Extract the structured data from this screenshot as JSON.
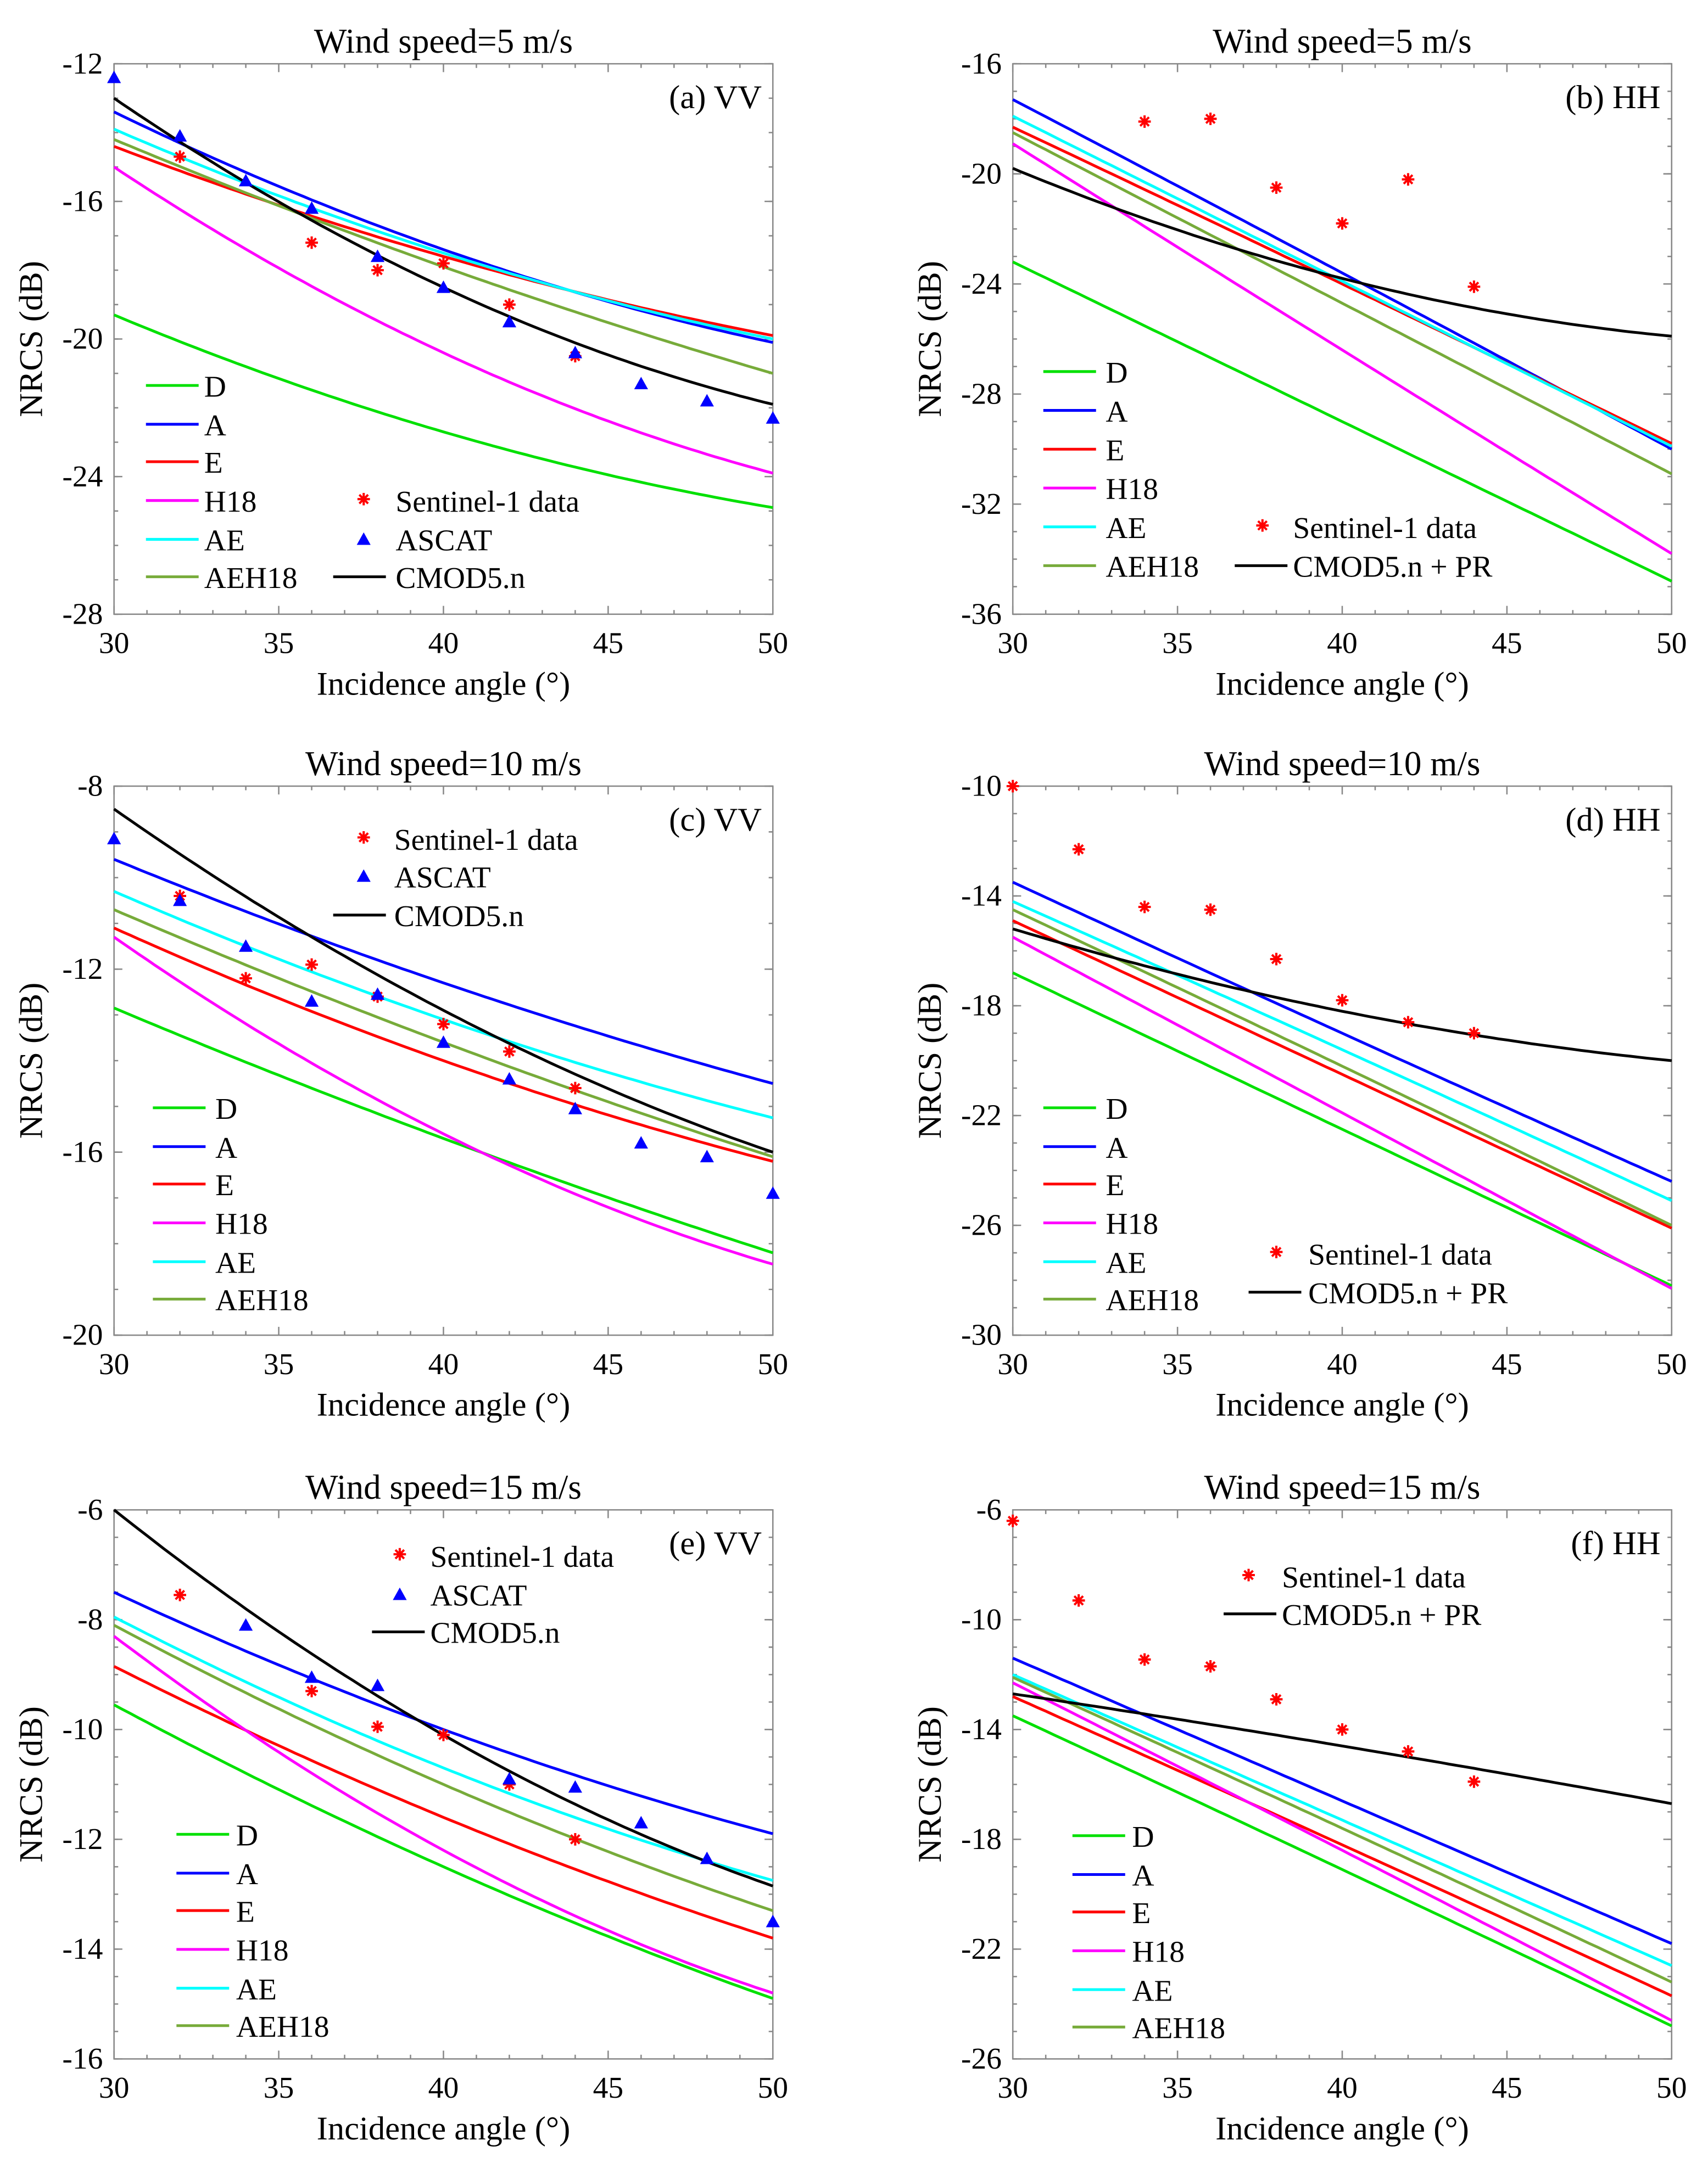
{
  "chart_data": [
    {
      "type": "line",
      "id": "a",
      "title": "Wind speed=5 m/s",
      "panel_label": "(a) VV",
      "xlabel": "Incidence angle (°)",
      "ylabel": "NRCS (dB)",
      "xlim": [
        30,
        50
      ],
      "ylim": [
        -28,
        -12
      ],
      "xticks": [
        30,
        35,
        40,
        45,
        50
      ],
      "yticks": [
        -12,
        -16,
        -20,
        -24,
        -28
      ],
      "legend_placement": "bottom-left",
      "series": [
        {
          "name": "D",
          "color": "#00e000",
          "x": [
            30,
            40,
            50
          ],
          "y": [
            -19.3,
            -22.7,
            -24.9
          ]
        },
        {
          "name": "A",
          "color": "#0000ff",
          "x": [
            30,
            40,
            50
          ],
          "y": [
            -13.4,
            -17.4,
            -20.1
          ]
        },
        {
          "name": "E",
          "color": "#ff0000",
          "x": [
            30,
            40,
            50
          ],
          "y": [
            -14.4,
            -17.6,
            -19.9
          ]
        },
        {
          "name": "H18",
          "color": "#ff00ff",
          "x": [
            30,
            40,
            50
          ],
          "y": [
            -15.0,
            -20.4,
            -23.9
          ]
        },
        {
          "name": "AE",
          "color": "#00ffff",
          "x": [
            30,
            40,
            50
          ],
          "y": [
            -13.9,
            -17.5,
            -20.0
          ]
        },
        {
          "name": "AEH18",
          "color": "#77ab3a",
          "x": [
            30,
            40,
            50
          ],
          "y": [
            -14.2,
            -17.9,
            -21.0
          ]
        },
        {
          "name": "CMOD5.n",
          "color": "#000000",
          "x": [
            30,
            40,
            50
          ],
          "y": [
            -13.0,
            -18.5,
            -21.9
          ]
        }
      ],
      "points": [
        {
          "name": "Sentinel-1 data",
          "marker": "star",
          "color": "#ff0000",
          "x": [
            32,
            36,
            38,
            40,
            42,
            44
          ],
          "y": [
            -14.7,
            -17.2,
            -18.0,
            -17.8,
            -19.0,
            -20.5
          ]
        },
        {
          "name": "ASCAT",
          "marker": "triangle",
          "color": "#0000ff",
          "x": [
            30,
            32,
            34,
            36,
            38,
            40,
            42,
            44,
            46,
            48,
            50
          ],
          "y": [
            -12.4,
            -14.1,
            -15.4,
            -16.2,
            -17.6,
            -18.5,
            -19.5,
            -20.4,
            -21.3,
            -21.8,
            -22.3
          ]
        }
      ]
    },
    {
      "type": "line",
      "id": "b",
      "title": "Wind speed=5 m/s",
      "panel_label": "(b) HH",
      "xlabel": "Incidence angle (°)",
      "ylabel": "NRCS (dB)",
      "xlim": [
        30,
        50
      ],
      "ylim": [
        -36,
        -16
      ],
      "xticks": [
        30,
        35,
        40,
        45,
        50
      ],
      "yticks": [
        -16,
        -20,
        -24,
        -28,
        -32,
        -36
      ],
      "legend_placement": "bottom-left",
      "series": [
        {
          "name": "D",
          "color": "#00e000",
          "x": [
            30,
            40,
            50
          ],
          "y": [
            -23.2,
            -29.0,
            -34.8
          ]
        },
        {
          "name": "A",
          "color": "#0000ff",
          "x": [
            30,
            40,
            50
          ],
          "y": [
            -17.3,
            -23.6,
            -30.0
          ]
        },
        {
          "name": "E",
          "color": "#ff0000",
          "x": [
            30,
            40,
            50
          ],
          "y": [
            -18.3,
            -24.0,
            -29.8
          ]
        },
        {
          "name": "H18",
          "color": "#ff00ff",
          "x": [
            30,
            40,
            50
          ],
          "y": [
            -18.9,
            -26.4,
            -33.8
          ]
        },
        {
          "name": "AE",
          "color": "#00ffff",
          "x": [
            30,
            40,
            50
          ],
          "y": [
            -17.9,
            -23.9,
            -29.9
          ]
        },
        {
          "name": "AEH18",
          "color": "#77ab3a",
          "x": [
            30,
            40,
            50
          ],
          "y": [
            -18.5,
            -24.7,
            -30.9
          ]
        },
        {
          "name": "CMOD5.n + PR",
          "color": "#000000",
          "x": [
            30,
            40,
            50
          ],
          "y": [
            -19.8,
            -23.8,
            -25.9
          ]
        }
      ],
      "points": [
        {
          "name": "Sentinel-1 data",
          "marker": "star",
          "color": "#ff0000",
          "x": [
            34,
            36,
            38,
            40,
            42,
            44
          ],
          "y": [
            -18.1,
            -18.0,
            -20.5,
            -21.8,
            -20.2,
            -24.1
          ]
        }
      ]
    },
    {
      "type": "line",
      "id": "c",
      "title": "Wind speed=10 m/s",
      "panel_label": "(c) VV",
      "xlabel": "Incidence angle (°)",
      "ylabel": "NRCS (dB)",
      "xlim": [
        30,
        50
      ],
      "ylim": [
        -20,
        -8
      ],
      "xticks": [
        30,
        35,
        40,
        45,
        50
      ],
      "yticks": [
        -8,
        -12,
        -16,
        -20
      ],
      "legend_placement": "bottom-left",
      "series": [
        {
          "name": "D",
          "color": "#00e000",
          "x": [
            30,
            40,
            50
          ],
          "y": [
            -12.85,
            -15.7,
            -18.2
          ]
        },
        {
          "name": "A",
          "color": "#0000ff",
          "x": [
            30,
            40,
            50
          ],
          "y": [
            -9.6,
            -12.3,
            -14.5
          ]
        },
        {
          "name": "E",
          "color": "#ff0000",
          "x": [
            30,
            40,
            50
          ],
          "y": [
            -11.1,
            -14.0,
            -16.2
          ]
        },
        {
          "name": "H18",
          "color": "#ff00ff",
          "x": [
            30,
            40,
            50
          ],
          "y": [
            -11.3,
            -15.6,
            -18.45
          ]
        },
        {
          "name": "AE",
          "color": "#00ffff",
          "x": [
            30,
            40,
            50
          ],
          "y": [
            -10.3,
            -13.1,
            -15.25
          ]
        },
        {
          "name": "AEH18",
          "color": "#77ab3a",
          "x": [
            30,
            40,
            50
          ],
          "y": [
            -10.7,
            -13.6,
            -16.1
          ]
        },
        {
          "name": "CMOD5.n",
          "color": "#000000",
          "x": [
            30,
            40,
            50
          ],
          "y": [
            -8.5,
            -12.9,
            -16.0
          ]
        }
      ],
      "points": [
        {
          "name": "Sentinel-1 data",
          "marker": "star",
          "color": "#ff0000",
          "x": [
            32,
            34,
            36,
            38,
            40,
            42,
            44
          ],
          "y": [
            -10.4,
            -12.2,
            -11.9,
            -12.6,
            -13.2,
            -13.8,
            -14.6
          ]
        },
        {
          "name": "ASCAT",
          "marker": "triangle",
          "color": "#0000ff",
          "x": [
            30,
            32,
            34,
            36,
            38,
            40,
            42,
            44,
            46,
            48,
            50
          ],
          "y": [
            -9.15,
            -10.5,
            -11.5,
            -12.7,
            -12.55,
            -13.6,
            -14.4,
            -15.05,
            -15.8,
            -16.1,
            -16.9
          ]
        }
      ]
    },
    {
      "type": "line",
      "id": "d",
      "title": "Wind speed=10 m/s",
      "panel_label": "(d) HH",
      "xlabel": "Incidence angle (°)",
      "ylabel": "NRCS (dB)",
      "xlim": [
        30,
        50
      ],
      "ylim": [
        -30,
        -10
      ],
      "xticks": [
        30,
        35,
        40,
        45,
        50
      ],
      "yticks": [
        -10,
        -14,
        -18,
        -22,
        -26,
        -30
      ],
      "legend_placement": "bottom-left",
      "series": [
        {
          "name": "D",
          "color": "#00e000",
          "x": [
            30,
            40,
            50
          ],
          "y": [
            -16.8,
            -22.5,
            -28.2
          ]
        },
        {
          "name": "A",
          "color": "#0000ff",
          "x": [
            30,
            40,
            50
          ],
          "y": [
            -13.5,
            -19.0,
            -24.4
          ]
        },
        {
          "name": "E",
          "color": "#ff0000",
          "x": [
            30,
            40,
            50
          ],
          "y": [
            -14.9,
            -20.5,
            -26.1
          ]
        },
        {
          "name": "H18",
          "color": "#ff00ff",
          "x": [
            30,
            40,
            50
          ],
          "y": [
            -15.5,
            -21.9,
            -28.3
          ]
        },
        {
          "name": "AE",
          "color": "#00ffff",
          "x": [
            30,
            40,
            50
          ],
          "y": [
            -14.2,
            -19.6,
            -25.1
          ]
        },
        {
          "name": "AEH18",
          "color": "#77ab3a",
          "x": [
            30,
            40,
            50
          ],
          "y": [
            -14.5,
            -20.2,
            -26.0
          ]
        },
        {
          "name": "CMOD5.n + PR",
          "color": "#000000",
          "x": [
            30,
            40,
            50
          ],
          "y": [
            -15.2,
            -18.2,
            -20.0
          ]
        }
      ],
      "points": [
        {
          "name": "Sentinel-1 data",
          "marker": "star",
          "color": "#ff0000",
          "x": [
            30,
            32,
            34,
            36,
            38,
            40,
            42,
            44
          ],
          "y": [
            -10.0,
            -12.3,
            -14.4,
            -14.5,
            -16.3,
            -17.8,
            -18.6,
            -19.0
          ]
        }
      ]
    },
    {
      "type": "line",
      "id": "e",
      "title": "Wind speed=15 m/s",
      "panel_label": "(e) VV",
      "xlabel": "Incidence angle (°)",
      "ylabel": "NRCS (dB)",
      "xlim": [
        30,
        50
      ],
      "ylim": [
        -16,
        -6
      ],
      "xticks": [
        30,
        35,
        40,
        45,
        50
      ],
      "yticks": [
        -6,
        -8,
        -10,
        -12,
        -14,
        -16
      ],
      "legend_placement": "bottom-left",
      "series": [
        {
          "name": "D",
          "color": "#00e000",
          "x": [
            30,
            40,
            50
          ],
          "y": [
            -9.55,
            -12.5,
            -14.9
          ]
        },
        {
          "name": "A",
          "color": "#0000ff",
          "x": [
            30,
            40,
            50
          ],
          "y": [
            -7.5,
            -10.0,
            -11.9
          ]
        },
        {
          "name": "E",
          "color": "#ff0000",
          "x": [
            30,
            40,
            50
          ],
          "y": [
            -8.85,
            -11.6,
            -13.8
          ]
        },
        {
          "name": "H18",
          "color": "#ff00ff",
          "x": [
            30,
            40,
            50
          ],
          "y": [
            -8.3,
            -12.2,
            -14.8
          ]
        },
        {
          "name": "AE",
          "color": "#00ffff",
          "x": [
            30,
            40,
            50
          ],
          "y": [
            -7.95,
            -10.7,
            -12.75
          ]
        },
        {
          "name": "AEH18",
          "color": "#77ab3a",
          "x": [
            30,
            40,
            50
          ],
          "y": [
            -8.1,
            -11.0,
            -13.3
          ]
        },
        {
          "name": "CMOD5.n",
          "color": "#000000",
          "x": [
            30,
            40,
            50
          ],
          "y": [
            -6.0,
            -10.1,
            -12.85
          ]
        }
      ],
      "points": [
        {
          "name": "Sentinel-1 data",
          "marker": "star",
          "color": "#ff0000",
          "x": [
            32,
            36,
            38,
            40,
            42,
            44
          ],
          "y": [
            -7.55,
            -9.3,
            -9.95,
            -10.1,
            -11.0,
            -12.0
          ]
        },
        {
          "name": "ASCAT",
          "marker": "triangle",
          "color": "#0000ff",
          "x": [
            34,
            36,
            38,
            42,
            44,
            46,
            48,
            50
          ],
          "y": [
            -8.1,
            -9.05,
            -9.2,
            -10.9,
            -11.05,
            -11.7,
            -12.35,
            -13.5
          ]
        }
      ]
    },
    {
      "type": "line",
      "id": "f",
      "title": "Wind speed=15 m/s",
      "panel_label": "(f) HH",
      "xlabel": "Incidence angle (°)",
      "ylabel": "NRCS (dB)",
      "xlim": [
        30,
        50
      ],
      "ylim": [
        -26,
        -6
      ],
      "xticks": [
        30,
        35,
        40,
        45,
        50
      ],
      "yticks": [
        -6,
        -10,
        -14,
        -18,
        -22,
        -26
      ],
      "legend_placement": "bottom-left",
      "series": [
        {
          "name": "D",
          "color": "#00e000",
          "x": [
            30,
            40,
            50
          ],
          "y": [
            -13.5,
            -19.1,
            -24.8
          ]
        },
        {
          "name": "A",
          "color": "#0000ff",
          "x": [
            30,
            40,
            50
          ],
          "y": [
            -11.4,
            -16.6,
            -21.8
          ]
        },
        {
          "name": "E",
          "color": "#ff0000",
          "x": [
            30,
            40,
            50
          ],
          "y": [
            -12.8,
            -18.2,
            -23.7
          ]
        },
        {
          "name": "H18",
          "color": "#ff00ff",
          "x": [
            30,
            40,
            50
          ],
          "y": [
            -12.3,
            -18.4,
            -24.6
          ]
        },
        {
          "name": "AE",
          "color": "#00ffff",
          "x": [
            30,
            40,
            50
          ],
          "y": [
            -12.0,
            -17.3,
            -22.6
          ]
        },
        {
          "name": "AEH18",
          "color": "#77ab3a",
          "x": [
            30,
            40,
            50
          ],
          "y": [
            -12.1,
            -17.6,
            -23.2
          ]
        },
        {
          "name": "CMOD5.n + PR",
          "color": "#000000",
          "x": [
            30,
            40,
            50
          ],
          "y": [
            -12.7,
            -14.6,
            -16.7
          ]
        }
      ],
      "points": [
        {
          "name": "Sentinel-1 data",
          "marker": "star",
          "color": "#ff0000",
          "x": [
            30,
            32,
            34,
            36,
            38,
            40,
            42,
            44
          ],
          "y": [
            -6.4,
            -9.3,
            -11.45,
            -11.7,
            -12.9,
            -14.0,
            -14.8,
            -15.9
          ]
        }
      ]
    }
  ]
}
